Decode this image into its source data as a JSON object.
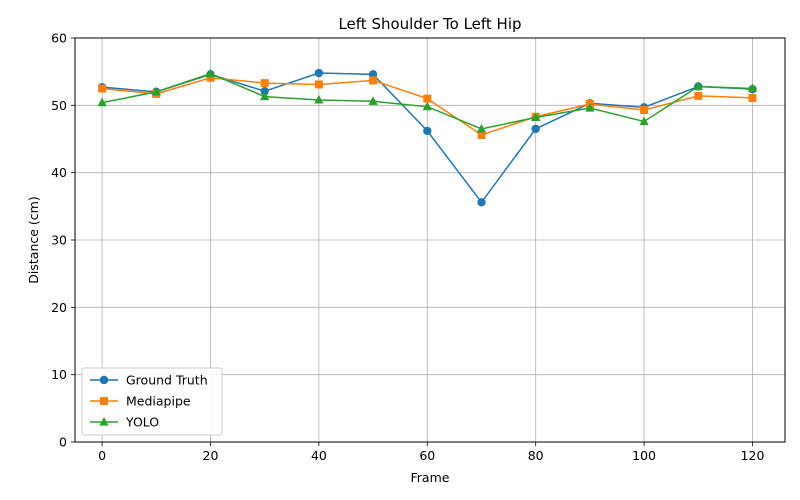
{
  "chart_data": {
    "type": "line",
    "title": "Left Shoulder To Left Hip",
    "xlabel": "Frame",
    "ylabel": "Distance (cm)",
    "xlim": [
      -5,
      126
    ],
    "ylim": [
      0,
      60
    ],
    "xticks": [
      0,
      20,
      40,
      60,
      80,
      100,
      120
    ],
    "yticks": [
      0,
      10,
      20,
      30,
      40,
      50,
      60
    ],
    "grid": true,
    "legend_position": "bottom-left",
    "x": [
      0,
      10,
      20,
      30,
      40,
      50,
      60,
      70,
      80,
      90,
      100,
      110,
      120
    ],
    "series": [
      {
        "name": "Ground Truth",
        "color": "#1f77b4",
        "marker": "circle",
        "values": [
          52.7,
          52.0,
          54.6,
          52.1,
          54.8,
          54.6,
          46.2,
          35.6,
          46.5,
          50.3,
          49.7,
          52.8,
          52.4
        ]
      },
      {
        "name": "Mediapipe",
        "color": "#ff7f0e",
        "marker": "square",
        "values": [
          52.5,
          51.7,
          54.1,
          53.3,
          53.1,
          53.7,
          51.0,
          45.6,
          48.3,
          50.2,
          49.3,
          51.4,
          51.1
        ]
      },
      {
        "name": "YOLO",
        "color": "#2ca02c",
        "marker": "triangle",
        "values": [
          50.4,
          52.0,
          54.7,
          51.3,
          50.8,
          50.6,
          49.8,
          46.5,
          48.2,
          49.6,
          47.6,
          52.8,
          52.5
        ]
      }
    ]
  }
}
